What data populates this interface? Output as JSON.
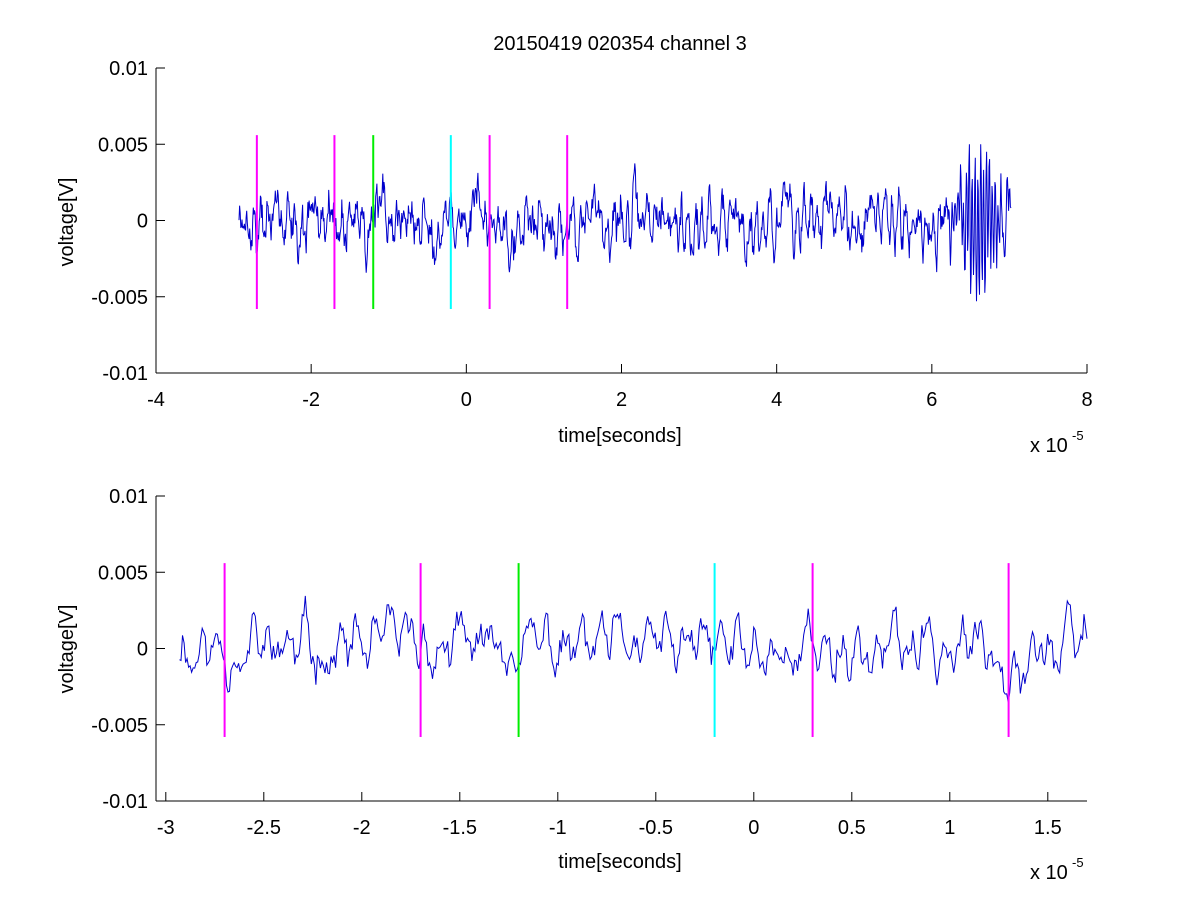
{
  "figure": {
    "title": "20150419 020354 channel 3"
  },
  "chart_data": [
    {
      "type": "line",
      "title": "20150419 020354 channel 3",
      "xlabel": "time[seconds]",
      "ylabel": "voltage[V]",
      "x_exponent_base": "x 10",
      "x_exponent_power": "-5",
      "xlim": [
        -4,
        8
      ],
      "ylim": [
        -0.01,
        0.01
      ],
      "x_ticks": [
        -4,
        -2,
        0,
        2,
        4,
        6,
        8
      ],
      "x_tick_labels": [
        "-4",
        "-2",
        "0",
        "2",
        "4",
        "6",
        "8"
      ],
      "y_ticks": [
        -0.01,
        -0.005,
        0,
        0.005,
        0.01
      ],
      "y_tick_labels": [
        "-0.01",
        "-0.005",
        "0",
        "0.005",
        "0.01"
      ],
      "grid": false,
      "series": [
        {
          "color": "#0000cc",
          "x_range": [
            -2.93,
            7.02
          ],
          "points": 1300,
          "seed": 7,
          "burst_center": 6.6,
          "burst_amplitude": 0.0048
        }
      ],
      "markers": [
        {
          "x": -2.7,
          "color": "#ff00ff",
          "ymin": -0.0058,
          "ymax": 0.0056
        },
        {
          "x": -1.7,
          "color": "#ff00ff",
          "ymin": -0.0058,
          "ymax": 0.0056
        },
        {
          "x": -1.2,
          "color": "#00ee00",
          "ymin": -0.0058,
          "ymax": 0.0056
        },
        {
          "x": -0.2,
          "color": "#00ffff",
          "ymin": -0.0058,
          "ymax": 0.0056
        },
        {
          "x": 0.3,
          "color": "#ff00ff",
          "ymin": -0.0058,
          "ymax": 0.0056
        },
        {
          "x": 1.3,
          "color": "#ff00ff",
          "ymin": -0.0058,
          "ymax": 0.0056
        }
      ]
    },
    {
      "type": "line",
      "title": "",
      "xlabel": "time[seconds]",
      "ylabel": "voltage[V]",
      "x_exponent_base": "x 10",
      "x_exponent_power": "-5",
      "xlim": [
        -3.05,
        1.7
      ],
      "ylim": [
        -0.01,
        0.01
      ],
      "x_ticks": [
        -3,
        -2.5,
        -2,
        -1.5,
        -1,
        -0.5,
        0,
        0.5,
        1,
        1.5
      ],
      "x_tick_labels": [
        "-3",
        "-2.5",
        "-2",
        "-1.5",
        "-1",
        "-0.5",
        "0",
        "0.5",
        "1",
        "1.5"
      ],
      "y_ticks": [
        -0.01,
        -0.005,
        0,
        0.005,
        0.01
      ],
      "y_tick_labels": [
        "-0.01",
        "-0.005",
        "0",
        "0.005",
        "0.01"
      ],
      "grid": false,
      "series": [
        {
          "color": "#0000cc",
          "x_range": [
            -2.93,
            1.7
          ],
          "points": 600,
          "seed": 11,
          "burst_center": null,
          "burst_amplitude": 0
        }
      ],
      "markers": [
        {
          "x": -2.7,
          "color": "#ff00ff",
          "ymin": -0.0058,
          "ymax": 0.0056
        },
        {
          "x": -1.7,
          "color": "#ff00ff",
          "ymin": -0.0058,
          "ymax": 0.0056
        },
        {
          "x": -1.2,
          "color": "#00ee00",
          "ymin": -0.0058,
          "ymax": 0.0056
        },
        {
          "x": -0.2,
          "color": "#00ffff",
          "ymin": -0.0058,
          "ymax": 0.0056
        },
        {
          "x": 0.3,
          "color": "#ff00ff",
          "ymin": -0.0058,
          "ymax": 0.0056
        },
        {
          "x": 1.3,
          "color": "#ff00ff",
          "ymin": -0.0058,
          "ymax": 0.0056
        }
      ]
    }
  ]
}
